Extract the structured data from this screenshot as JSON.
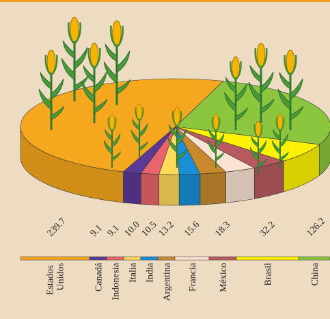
{
  "chart_data": {
    "type": "pie",
    "categories": [
      "Estados Unidos",
      "Canadá",
      "Indonesia",
      "Italia",
      "India",
      "Argentina",
      "Francia",
      "México",
      "Brasil",
      "China"
    ],
    "values": [
      239.7,
      9.1,
      9.1,
      10.0,
      10.5,
      13.2,
      15.6,
      18.3,
      32.2,
      126.2
    ],
    "value_labels": [
      "239.7",
      "9.1",
      "9.1",
      "10.0",
      "10.5",
      "13.2",
      "15.6",
      "18.3",
      "32.2",
      "126.2"
    ],
    "colors": [
      "#f5a71d",
      "#5b3a97",
      "#e8666b",
      "#ffd95a",
      "#1a8fd6",
      "#c98a2e",
      "#fbe3d1",
      "#b85a60",
      "#fff200",
      "#8cc63f"
    ]
  }
}
